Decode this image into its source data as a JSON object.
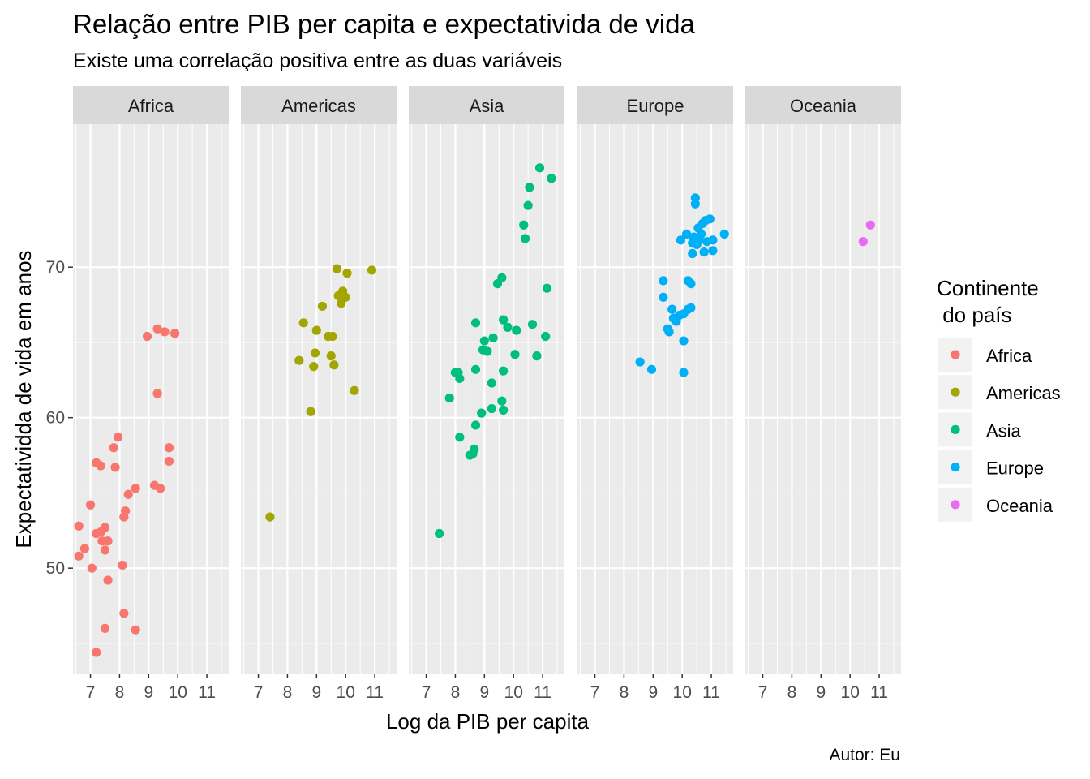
{
  "chart_data": {
    "type": "scatter",
    "title": "Relação entre PIB per capita e expectativida de vida",
    "subtitle": "Existe uma correlação positiva entre as duas variáveis",
    "caption": "Autor: Eu",
    "xlabel": "Log da PIB per capita",
    "ylabel": "Expectatividda de vida em anos",
    "xlim": [
      6.4,
      11.75
    ],
    "ylim": [
      43,
      79.5
    ],
    "x_ticks": [
      7,
      8,
      9,
      10,
      11
    ],
    "x_tick_labels": [
      "7",
      "8",
      "9",
      "10",
      "11"
    ],
    "y_ticks": [
      50,
      60,
      70
    ],
    "y_tick_labels": [
      "50",
      "60",
      "70"
    ],
    "grid": true,
    "legend": {
      "title_line1": "Continente",
      "title_line2": " do país",
      "placement": "right"
    },
    "facets": [
      "Africa",
      "Americas",
      "Asia",
      "Europe",
      "Oceania"
    ],
    "series": [
      {
        "name": "Africa",
        "color": "#F8766D",
        "points": [
          [
            6.6,
            52.8
          ],
          [
            6.6,
            50.8
          ],
          [
            6.8,
            51.3
          ],
          [
            7.0,
            54.2
          ],
          [
            7.05,
            50.0
          ],
          [
            7.2,
            57.0
          ],
          [
            7.2,
            52.3
          ],
          [
            7.2,
            44.4
          ],
          [
            7.35,
            56.8
          ],
          [
            7.35,
            52.4
          ],
          [
            7.4,
            51.8
          ],
          [
            7.5,
            52.7
          ],
          [
            7.5,
            51.2
          ],
          [
            7.6,
            51.8
          ],
          [
            7.6,
            49.2
          ],
          [
            7.5,
            46.0
          ],
          [
            7.8,
            58.0
          ],
          [
            7.85,
            56.7
          ],
          [
            7.95,
            58.7
          ],
          [
            8.1,
            50.2
          ],
          [
            8.15,
            53.4
          ],
          [
            8.2,
            53.8
          ],
          [
            8.15,
            47.0
          ],
          [
            8.3,
            54.9
          ],
          [
            8.55,
            55.3
          ],
          [
            8.55,
            45.9
          ],
          [
            8.95,
            65.4
          ],
          [
            9.2,
            55.5
          ],
          [
            9.3,
            61.6
          ],
          [
            9.3,
            65.9
          ],
          [
            9.4,
            55.3
          ],
          [
            9.55,
            65.7
          ],
          [
            9.7,
            58.0
          ],
          [
            9.7,
            57.1
          ],
          [
            9.9,
            65.6
          ]
        ]
      },
      {
        "name": "Americas",
        "color": "#A3A500",
        "points": [
          [
            7.4,
            53.4
          ],
          [
            8.4,
            63.8
          ],
          [
            8.55,
            66.3
          ],
          [
            8.8,
            60.4
          ],
          [
            8.9,
            63.4
          ],
          [
            8.95,
            64.3
          ],
          [
            9.0,
            65.8
          ],
          [
            9.2,
            67.4
          ],
          [
            9.4,
            65.4
          ],
          [
            9.5,
            64.1
          ],
          [
            9.55,
            65.4
          ],
          [
            9.6,
            63.5
          ],
          [
            9.7,
            69.9
          ],
          [
            9.75,
            68.1
          ],
          [
            9.85,
            67.6
          ],
          [
            9.9,
            68.4
          ],
          [
            10.0,
            68.0
          ],
          [
            10.05,
            69.6
          ],
          [
            10.3,
            61.8
          ],
          [
            10.9,
            69.8
          ]
        ]
      },
      {
        "name": "Asia",
        "color": "#00BF7D",
        "points": [
          [
            7.45,
            52.3
          ],
          [
            7.8,
            61.3
          ],
          [
            8.0,
            63.0
          ],
          [
            8.1,
            63.0
          ],
          [
            8.15,
            62.6
          ],
          [
            8.15,
            58.7
          ],
          [
            8.5,
            57.5
          ],
          [
            8.6,
            57.6
          ],
          [
            8.65,
            57.9
          ],
          [
            8.7,
            66.3
          ],
          [
            8.7,
            59.5
          ],
          [
            8.7,
            63.2
          ],
          [
            8.9,
            60.3
          ],
          [
            8.95,
            64.5
          ],
          [
            9.0,
            65.1
          ],
          [
            9.1,
            64.4
          ],
          [
            9.25,
            60.6
          ],
          [
            9.25,
            62.3
          ],
          [
            9.3,
            65.3
          ],
          [
            9.45,
            68.9
          ],
          [
            9.6,
            69.3
          ],
          [
            9.6,
            61.1
          ],
          [
            9.65,
            66.5
          ],
          [
            9.65,
            60.5
          ],
          [
            9.65,
            63.1
          ],
          [
            9.8,
            66.0
          ],
          [
            10.05,
            64.2
          ],
          [
            10.1,
            65.8
          ],
          [
            10.35,
            72.8
          ],
          [
            10.4,
            71.9
          ],
          [
            10.5,
            74.1
          ],
          [
            10.55,
            75.3
          ],
          [
            10.65,
            66.2
          ],
          [
            10.8,
            64.1
          ],
          [
            10.9,
            76.6
          ],
          [
            11.1,
            65.4
          ],
          [
            11.15,
            68.6
          ],
          [
            11.3,
            75.9
          ]
        ]
      },
      {
        "name": "Europe",
        "color": "#00B0F6",
        "points": [
          [
            8.55,
            63.7
          ],
          [
            8.95,
            63.2
          ],
          [
            9.35,
            69.1
          ],
          [
            9.35,
            68.0
          ],
          [
            9.5,
            65.9
          ],
          [
            9.55,
            65.7
          ],
          [
            9.65,
            67.2
          ],
          [
            9.7,
            66.6
          ],
          [
            9.8,
            66.4
          ],
          [
            9.9,
            66.8
          ],
          [
            9.95,
            71.8
          ],
          [
            10.05,
            66.9
          ],
          [
            10.05,
            65.1
          ],
          [
            10.05,
            63.0
          ],
          [
            10.15,
            72.2
          ],
          [
            10.2,
            69.1
          ],
          [
            10.2,
            67.2
          ],
          [
            10.3,
            67.3
          ],
          [
            10.3,
            68.9
          ],
          [
            10.35,
            71.6
          ],
          [
            10.35,
            70.9
          ],
          [
            10.4,
            72.0
          ],
          [
            10.45,
            74.6
          ],
          [
            10.45,
            74.2
          ],
          [
            10.5,
            71.5
          ],
          [
            10.55,
            72.6
          ],
          [
            10.6,
            71.8
          ],
          [
            10.65,
            72.2
          ],
          [
            10.7,
            72.9
          ],
          [
            10.75,
            71.0
          ],
          [
            10.8,
            73.1
          ],
          [
            10.85,
            71.7
          ],
          [
            10.95,
            73.2
          ],
          [
            11.05,
            71.8
          ],
          [
            11.05,
            71.1
          ],
          [
            11.45,
            72.2
          ]
        ]
      },
      {
        "name": "Oceania",
        "color": "#E76BF3",
        "points": [
          [
            10.45,
            71.7
          ],
          [
            10.7,
            72.8
          ]
        ]
      }
    ]
  }
}
